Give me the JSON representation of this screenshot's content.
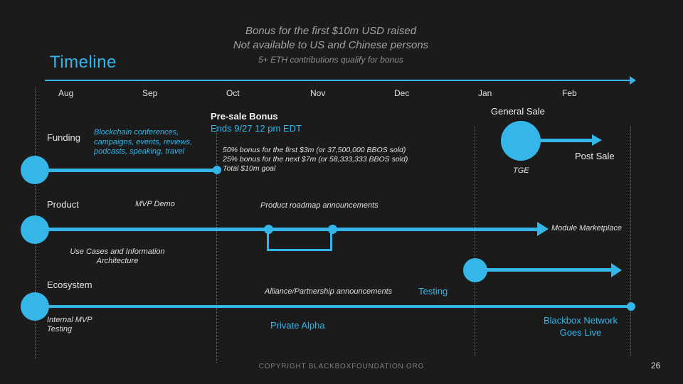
{
  "slide": {
    "title": "Timeline",
    "page_number": "26",
    "footer": "COPYRIGHT BLACKBOXFOUNDATION.ORG"
  },
  "header_note": {
    "line1": "Bonus for the first $10m USD raised",
    "line2": "Not available to US and Chinese persons",
    "line3": "5+ ETH contributions qualify for bonus"
  },
  "axis": {
    "months": [
      "Aug",
      "Sep",
      "Oct",
      "Nov",
      "Dec",
      "Jan",
      "Feb"
    ]
  },
  "funding": {
    "label": "Funding",
    "activities": "Blockchain conferences, campaigns, events, reviews, podcasts, speaking, travel",
    "presale_title": "Pre-sale Bonus",
    "presale_deadline": "Ends 9/27 12 pm EDT",
    "bonus_line1": "50% bonus for the first $3m (or 37,500,000 BBOS sold)",
    "bonus_line2": "25% bonus for the next $7m (or 58,333,333 BBOS sold)",
    "bonus_line3": "Total $10m goal",
    "general_sale": "General Sale",
    "post_sale": "Post Sale",
    "tge": "TGE"
  },
  "product": {
    "label": "Product",
    "mvp_demo": "MVP Demo",
    "roadmap": "Product roadmap announcements",
    "module_marketplace": "Module Marketplace",
    "use_cases": "Use Cases and Information Architecture"
  },
  "ecosystem": {
    "label": "Ecosystem",
    "alliance": "Alliance/Partnership announcements",
    "testing": "Testing",
    "internal_mvp": "Internal MVP Testing",
    "private_alpha": "Private Alpha",
    "goes_live": "Blackbox Network Goes Live"
  },
  "colors": {
    "accent": "#35b6e9",
    "background": "#1b1b1b",
    "muted_text": "#a2a2a2"
  }
}
